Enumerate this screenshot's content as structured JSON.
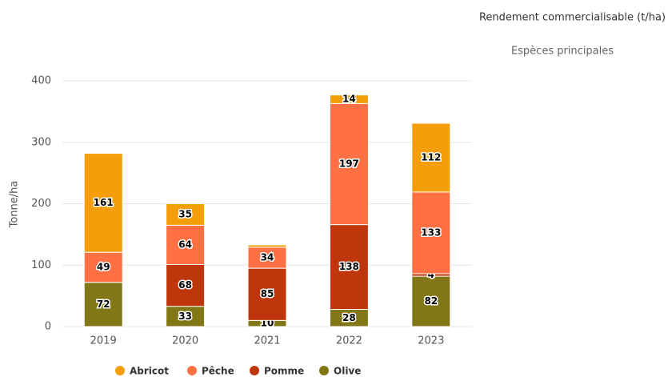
{
  "chart_data": {
    "type": "stacked_bar",
    "title": "Rendement commercialisable (t/ha)",
    "subtitle": "Espèces principales",
    "y_label": "Tonne/ha",
    "categories": [
      "2019",
      "2020",
      "2021",
      "2022",
      "2023"
    ],
    "series": [
      {
        "name": "Abricot",
        "color": "#f59e0b",
        "values": [
          161,
          35,
          4,
          14,
          112
        ],
        "value_labels": [
          "161",
          "35",
          null,
          "14",
          "112"
        ]
      },
      {
        "name": "Pêche",
        "color": "#ff7043",
        "values": [
          49,
          64,
          34,
          197,
          133
        ],
        "value_labels": [
          "49",
          "64",
          "34",
          "197",
          "133"
        ]
      },
      {
        "name": "Pomme",
        "color": "#bf360c",
        "values": [
          null,
          68,
          85,
          138,
          4
        ],
        "value_labels": [
          null,
          "68",
          "85",
          "138",
          "4"
        ]
      },
      {
        "name": "Olive",
        "color": "#827717",
        "values": [
          72,
          33,
          10,
          28,
          82
        ],
        "value_labels": [
          "72",
          "33",
          "10",
          "28",
          "82"
        ]
      }
    ],
    "ylim": [
      0,
      400
    ],
    "yticks": [
      0,
      100,
      200,
      300,
      400
    ],
    "grid": true,
    "legend": "bottom"
  }
}
